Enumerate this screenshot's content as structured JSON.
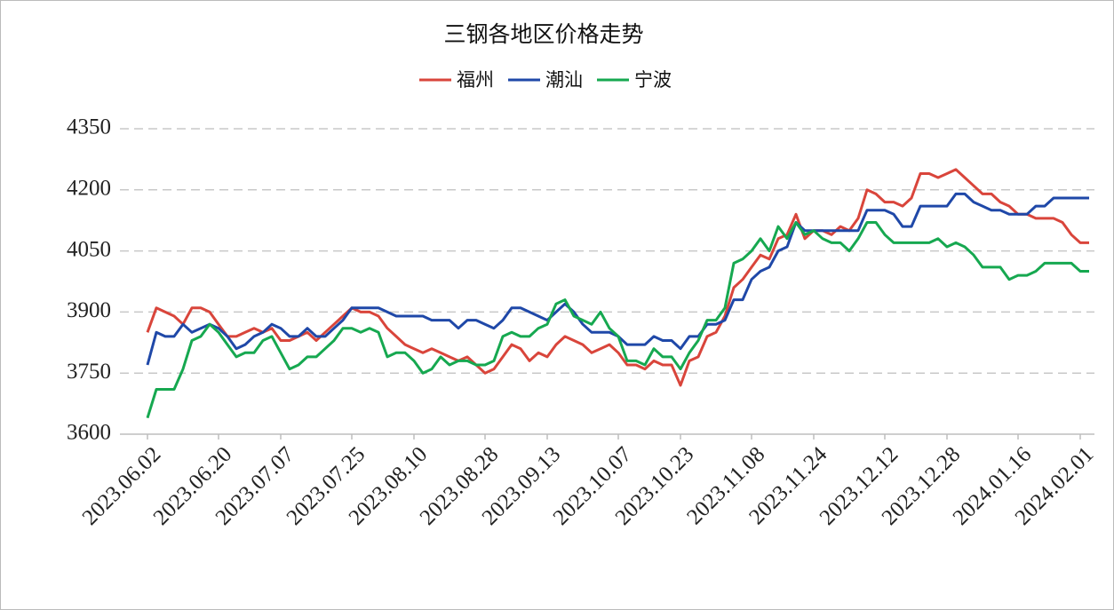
{
  "chart_data": {
    "type": "line",
    "title": "三钢各地区价格走势",
    "categories": [
      "2023.06.02",
      null,
      null,
      null,
      null,
      null,
      null,
      null,
      "2023.06.20",
      null,
      null,
      null,
      null,
      null,
      null,
      "2023.07.07",
      null,
      null,
      null,
      null,
      null,
      null,
      null,
      "2023.07.25",
      null,
      null,
      null,
      null,
      null,
      null,
      "2023.08.10",
      null,
      null,
      null,
      null,
      null,
      null,
      null,
      "2023.08.28",
      null,
      null,
      null,
      null,
      null,
      null,
      "2023.09.13",
      null,
      null,
      null,
      null,
      null,
      null,
      null,
      "2023.10.07",
      null,
      null,
      null,
      null,
      null,
      null,
      "2023.10.23",
      null,
      null,
      null,
      null,
      null,
      null,
      null,
      "2023.11.08",
      null,
      null,
      null,
      null,
      null,
      null,
      "2023.11.24",
      null,
      null,
      null,
      null,
      null,
      null,
      null,
      "2023.12.12",
      null,
      null,
      null,
      null,
      null,
      null,
      "2023.12.28",
      null,
      null,
      null,
      null,
      null,
      null,
      null,
      "2024.01.16",
      null,
      null,
      null,
      null,
      null,
      null,
      "2024.02.01",
      null
    ],
    "series": [
      {
        "name": "福州",
        "color": "#d9453b",
        "values": [
          3850,
          3910,
          3900,
          3890,
          3870,
          3910,
          3910,
          3900,
          3870,
          3840,
          3840,
          3850,
          3860,
          3850,
          3860,
          3830,
          3830,
          3840,
          3850,
          3830,
          3850,
          3870,
          3890,
          3910,
          3900,
          3900,
          3890,
          3860,
          3840,
          3820,
          3810,
          3800,
          3810,
          3800,
          3790,
          3780,
          3790,
          3770,
          3750,
          3760,
          3790,
          3820,
          3810,
          3780,
          3800,
          3790,
          3820,
          3840,
          3830,
          3820,
          3800,
          3810,
          3820,
          3800,
          3770,
          3770,
          3760,
          3780,
          3770,
          3770,
          3720,
          3780,
          3790,
          3840,
          3850,
          3890,
          3960,
          3980,
          4010,
          4040,
          4030,
          4080,
          4090,
          4140,
          4080,
          4100,
          4100,
          4090,
          4110,
          4100,
          4130,
          4200,
          4190,
          4170,
          4170,
          4160,
          4180,
          4240,
          4240,
          4230,
          4240,
          4250,
          4230,
          4210,
          4190,
          4190,
          4170,
          4160,
          4140,
          4140,
          4130,
          4130,
          4130,
          4120,
          4090,
          4070,
          4070
        ]
      },
      {
        "name": "潮汕",
        "color": "#1f48a8",
        "values": [
          3770,
          3850,
          3840,
          3840,
          3870,
          3850,
          3860,
          3870,
          3860,
          3840,
          3810,
          3820,
          3840,
          3850,
          3870,
          3860,
          3840,
          3840,
          3860,
          3840,
          3840,
          3860,
          3880,
          3910,
          3910,
          3910,
          3910,
          3900,
          3890,
          3890,
          3890,
          3890,
          3880,
          3880,
          3880,
          3860,
          3880,
          3880,
          3870,
          3860,
          3880,
          3910,
          3910,
          3900,
          3890,
          3880,
          3900,
          3920,
          3900,
          3870,
          3850,
          3850,
          3850,
          3840,
          3820,
          3820,
          3820,
          3840,
          3830,
          3830,
          3810,
          3840,
          3840,
          3870,
          3870,
          3880,
          3930,
          3930,
          3980,
          4000,
          4010,
          4050,
          4060,
          4120,
          4100,
          4100,
          4100,
          4100,
          4100,
          4100,
          4100,
          4150,
          4150,
          4150,
          4140,
          4110,
          4110,
          4160,
          4160,
          4160,
          4160,
          4190,
          4190,
          4170,
          4160,
          4150,
          4150,
          4140,
          4140,
          4140,
          4160,
          4160,
          4180,
          4180,
          4180,
          4180,
          4180
        ]
      },
      {
        "name": "宁波",
        "color": "#16a850",
        "values": [
          3640,
          3710,
          3710,
          3710,
          3760,
          3830,
          3840,
          3870,
          3850,
          3820,
          3790,
          3800,
          3800,
          3830,
          3840,
          3800,
          3760,
          3770,
          3790,
          3790,
          3810,
          3830,
          3860,
          3860,
          3850,
          3860,
          3850,
          3790,
          3800,
          3800,
          3780,
          3750,
          3760,
          3790,
          3770,
          3780,
          3780,
          3770,
          3770,
          3780,
          3840,
          3850,
          3840,
          3840,
          3860,
          3870,
          3920,
          3930,
          3890,
          3880,
          3870,
          3900,
          3860,
          3840,
          3780,
          3780,
          3770,
          3810,
          3790,
          3790,
          3760,
          3800,
          3830,
          3880,
          3880,
          3910,
          4020,
          4030,
          4050,
          4080,
          4050,
          4110,
          4080,
          4120,
          4090,
          4100,
          4080,
          4070,
          4070,
          4050,
          4080,
          4120,
          4120,
          4090,
          4070,
          4070,
          4070,
          4070,
          4070,
          4080,
          4060,
          4070,
          4060,
          4040,
          4010,
          4010,
          4010,
          3980,
          3990,
          3990,
          4000,
          4020,
          4020,
          4020,
          4020,
          4000,
          4000
        ]
      }
    ],
    "ylim": [
      3600,
      4350
    ],
    "yticks": [
      3600,
      3750,
      3900,
      4050,
      4200,
      4350
    ],
    "grid": true
  }
}
